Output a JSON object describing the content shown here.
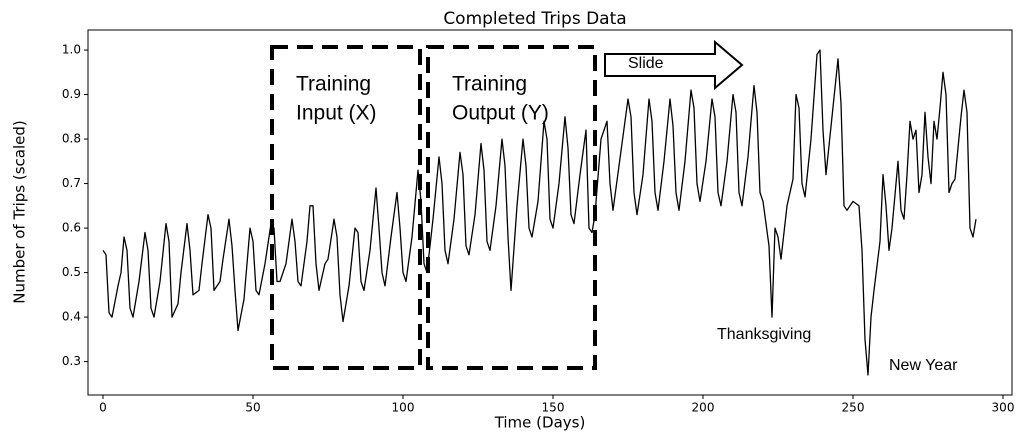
{
  "chart_data": {
    "type": "line",
    "title": "Completed Trips Data",
    "xlabel": "Time (Days)",
    "ylabel": "Number of Trips (scaled)",
    "color": "#000000",
    "xlim": [
      -5,
      303
    ],
    "ylim": [
      0.225,
      1.045
    ],
    "xticks": [
      0,
      50,
      100,
      150,
      200,
      250,
      300
    ],
    "yticks": [
      0.3,
      0.4,
      0.5,
      0.6,
      0.7,
      0.8,
      0.9,
      {
        "value": 1,
        "label": "1.0"
      }
    ],
    "annotations": [
      [
        "Training",
        "Input (X)"
      ],
      [
        "Training",
        "Output (Y)"
      ],
      [
        "Slide"
      ],
      [
        "Thanksgiving"
      ],
      [
        "New Year"
      ]
    ],
    "x": [
      0,
      1,
      2,
      3,
      5,
      6,
      7,
      8,
      9,
      10,
      12,
      14,
      15,
      16,
      17,
      19,
      21,
      22,
      23,
      25,
      26,
      28,
      29,
      30,
      32,
      33,
      35,
      36,
      37,
      39,
      40,
      42,
      43,
      44,
      45,
      47,
      49,
      50,
      51,
      52,
      54,
      56,
      57,
      58,
      59,
      61,
      63,
      64,
      65,
      66,
      68,
      69,
      70,
      71,
      72,
      74,
      75,
      77,
      78,
      79,
      80,
      82,
      84,
      85,
      86,
      87,
      89,
      91,
      92,
      93,
      94,
      96,
      98,
      99,
      100,
      101,
      103,
      105,
      106,
      107,
      108,
      110,
      112,
      113,
      114,
      115,
      117,
      119,
      120,
      121,
      122,
      124,
      126,
      127,
      128,
      129,
      131,
      133,
      134,
      135,
      136,
      138,
      140,
      141,
      142,
      143,
      145,
      147,
      148,
      149,
      150,
      152,
      154,
      155,
      156,
      157,
      159,
      161,
      162,
      163,
      164,
      166,
      168,
      169,
      170,
      172,
      175,
      176,
      177,
      178,
      180,
      182,
      183,
      184,
      185,
      187,
      189,
      190,
      191,
      192,
      194,
      196,
      197,
      198,
      199,
      201,
      203,
      204,
      205,
      206,
      208,
      210,
      211,
      212,
      213,
      215,
      217,
      218,
      219,
      220,
      221,
      222,
      223,
      224,
      225,
      226,
      228,
      230,
      231,
      232,
      233,
      234,
      236,
      238,
      239,
      240,
      241,
      243,
      245,
      246,
      247,
      248,
      250,
      252,
      253,
      254,
      255,
      256,
      257,
      259,
      260,
      261,
      262,
      263,
      265,
      266,
      267,
      268,
      269,
      270,
      271,
      272,
      273,
      274,
      275,
      276,
      277,
      278,
      279,
      280,
      281,
      282,
      283,
      284,
      286,
      287,
      288,
      289,
      290,
      291
    ],
    "values": [
      0.55,
      0.54,
      0.41,
      0.4,
      0.47,
      0.5,
      0.58,
      0.55,
      0.42,
      0.4,
      0.48,
      0.59,
      0.55,
      0.42,
      0.4,
      0.48,
      0.61,
      0.57,
      0.4,
      0.43,
      0.5,
      0.61,
      0.55,
      0.45,
      0.46,
      0.52,
      0.63,
      0.6,
      0.46,
      0.48,
      0.53,
      0.62,
      0.56,
      0.46,
      0.37,
      0.44,
      0.6,
      0.57,
      0.46,
      0.45,
      0.52,
      0.61,
      0.6,
      0.48,
      0.48,
      0.52,
      0.62,
      0.57,
      0.48,
      0.47,
      0.57,
      0.65,
      0.65,
      0.52,
      0.46,
      0.52,
      0.53,
      0.62,
      0.58,
      0.45,
      0.39,
      0.47,
      0.6,
      0.59,
      0.48,
      0.46,
      0.55,
      0.69,
      0.6,
      0.5,
      0.47,
      0.58,
      0.68,
      0.6,
      0.5,
      0.48,
      0.58,
      0.73,
      0.66,
      0.52,
      0.5,
      0.62,
      0.76,
      0.7,
      0.55,
      0.52,
      0.62,
      0.77,
      0.72,
      0.56,
      0.54,
      0.63,
      0.79,
      0.73,
      0.57,
      0.55,
      0.65,
      0.8,
      0.74,
      0.58,
      0.46,
      0.65,
      0.8,
      0.74,
      0.6,
      0.58,
      0.66,
      0.84,
      0.8,
      0.62,
      0.6,
      0.7,
      0.85,
      0.78,
      0.63,
      0.61,
      0.72,
      0.82,
      0.6,
      0.59,
      0.63,
      0.8,
      0.84,
      0.7,
      0.64,
      0.74,
      0.89,
      0.85,
      0.68,
      0.63,
      0.72,
      0.89,
      0.84,
      0.68,
      0.64,
      0.75,
      0.89,
      0.83,
      0.68,
      0.64,
      0.75,
      0.91,
      0.87,
      0.7,
      0.66,
      0.75,
      0.89,
      0.85,
      0.68,
      0.65,
      0.75,
      0.9,
      0.86,
      0.68,
      0.65,
      0.76,
      0.92,
      0.86,
      0.68,
      0.66,
      0.61,
      0.56,
      0.4,
      0.6,
      0.58,
      0.53,
      0.65,
      0.71,
      0.9,
      0.87,
      0.7,
      0.67,
      0.8,
      0.99,
      1.0,
      0.82,
      0.72,
      0.85,
      0.98,
      0.88,
      0.65,
      0.64,
      0.66,
      0.65,
      0.55,
      0.35,
      0.27,
      0.4,
      0.46,
      0.57,
      0.72,
      0.65,
      0.55,
      0.6,
      0.75,
      0.64,
      0.62,
      0.72,
      0.84,
      0.8,
      0.82,
      0.68,
      0.72,
      0.86,
      0.76,
      0.7,
      0.84,
      0.8,
      0.87,
      0.95,
      0.9,
      0.68,
      0.7,
      0.71,
      0.85,
      0.91,
      0.86,
      0.6,
      0.58,
      0.62
    ]
  }
}
